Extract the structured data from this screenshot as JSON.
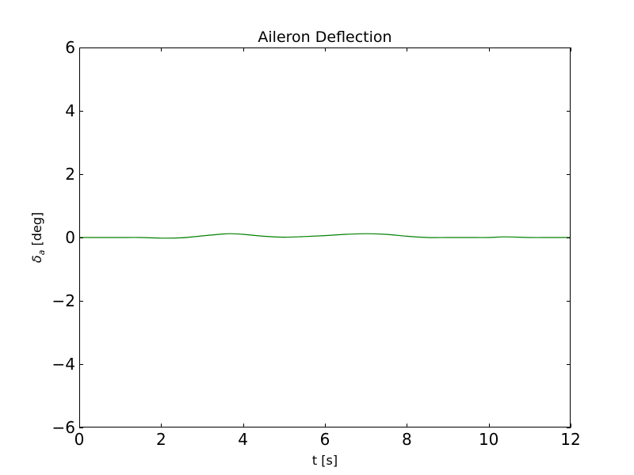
{
  "chart_data": {
    "type": "line",
    "title": "Aileron Deflection",
    "xlabel": "t [s]",
    "ylabel": {
      "symbol": "δ",
      "subscript": "a",
      "unit": " [deg]"
    },
    "xlim": [
      0,
      12
    ],
    "ylim": [
      -6,
      6
    ],
    "xticks": [
      0,
      2,
      4,
      6,
      8,
      10,
      12
    ],
    "yticks": [
      -6,
      -4,
      -2,
      0,
      2,
      4,
      6
    ],
    "xtick_labels": [
      "0",
      "2",
      "4",
      "6",
      "8",
      "10",
      "12"
    ],
    "ytick_labels": [
      "−6",
      "−4",
      "−2",
      "0",
      "2",
      "4",
      "6"
    ],
    "grid": false,
    "series": [
      {
        "color": "#008000",
        "x": [
          0,
          0.5,
          1.0,
          1.5,
          2.0,
          2.5,
          3.0,
          3.5,
          3.7,
          4.0,
          4.5,
          5.0,
          5.5,
          6.0,
          6.5,
          7.0,
          7.5,
          8.0,
          8.5,
          9.0,
          9.5,
          10.0,
          10.4,
          11.0,
          11.5,
          12.0
        ],
        "y": [
          0.0,
          0.0,
          0.0,
          0.0,
          -0.02,
          -0.01,
          0.05,
          0.11,
          0.12,
          0.1,
          0.04,
          0.01,
          0.03,
          0.06,
          0.1,
          0.12,
          0.1,
          0.04,
          0.0,
          0.0,
          0.0,
          0.0,
          0.02,
          0.0,
          0.0,
          0.0
        ]
      }
    ]
  }
}
